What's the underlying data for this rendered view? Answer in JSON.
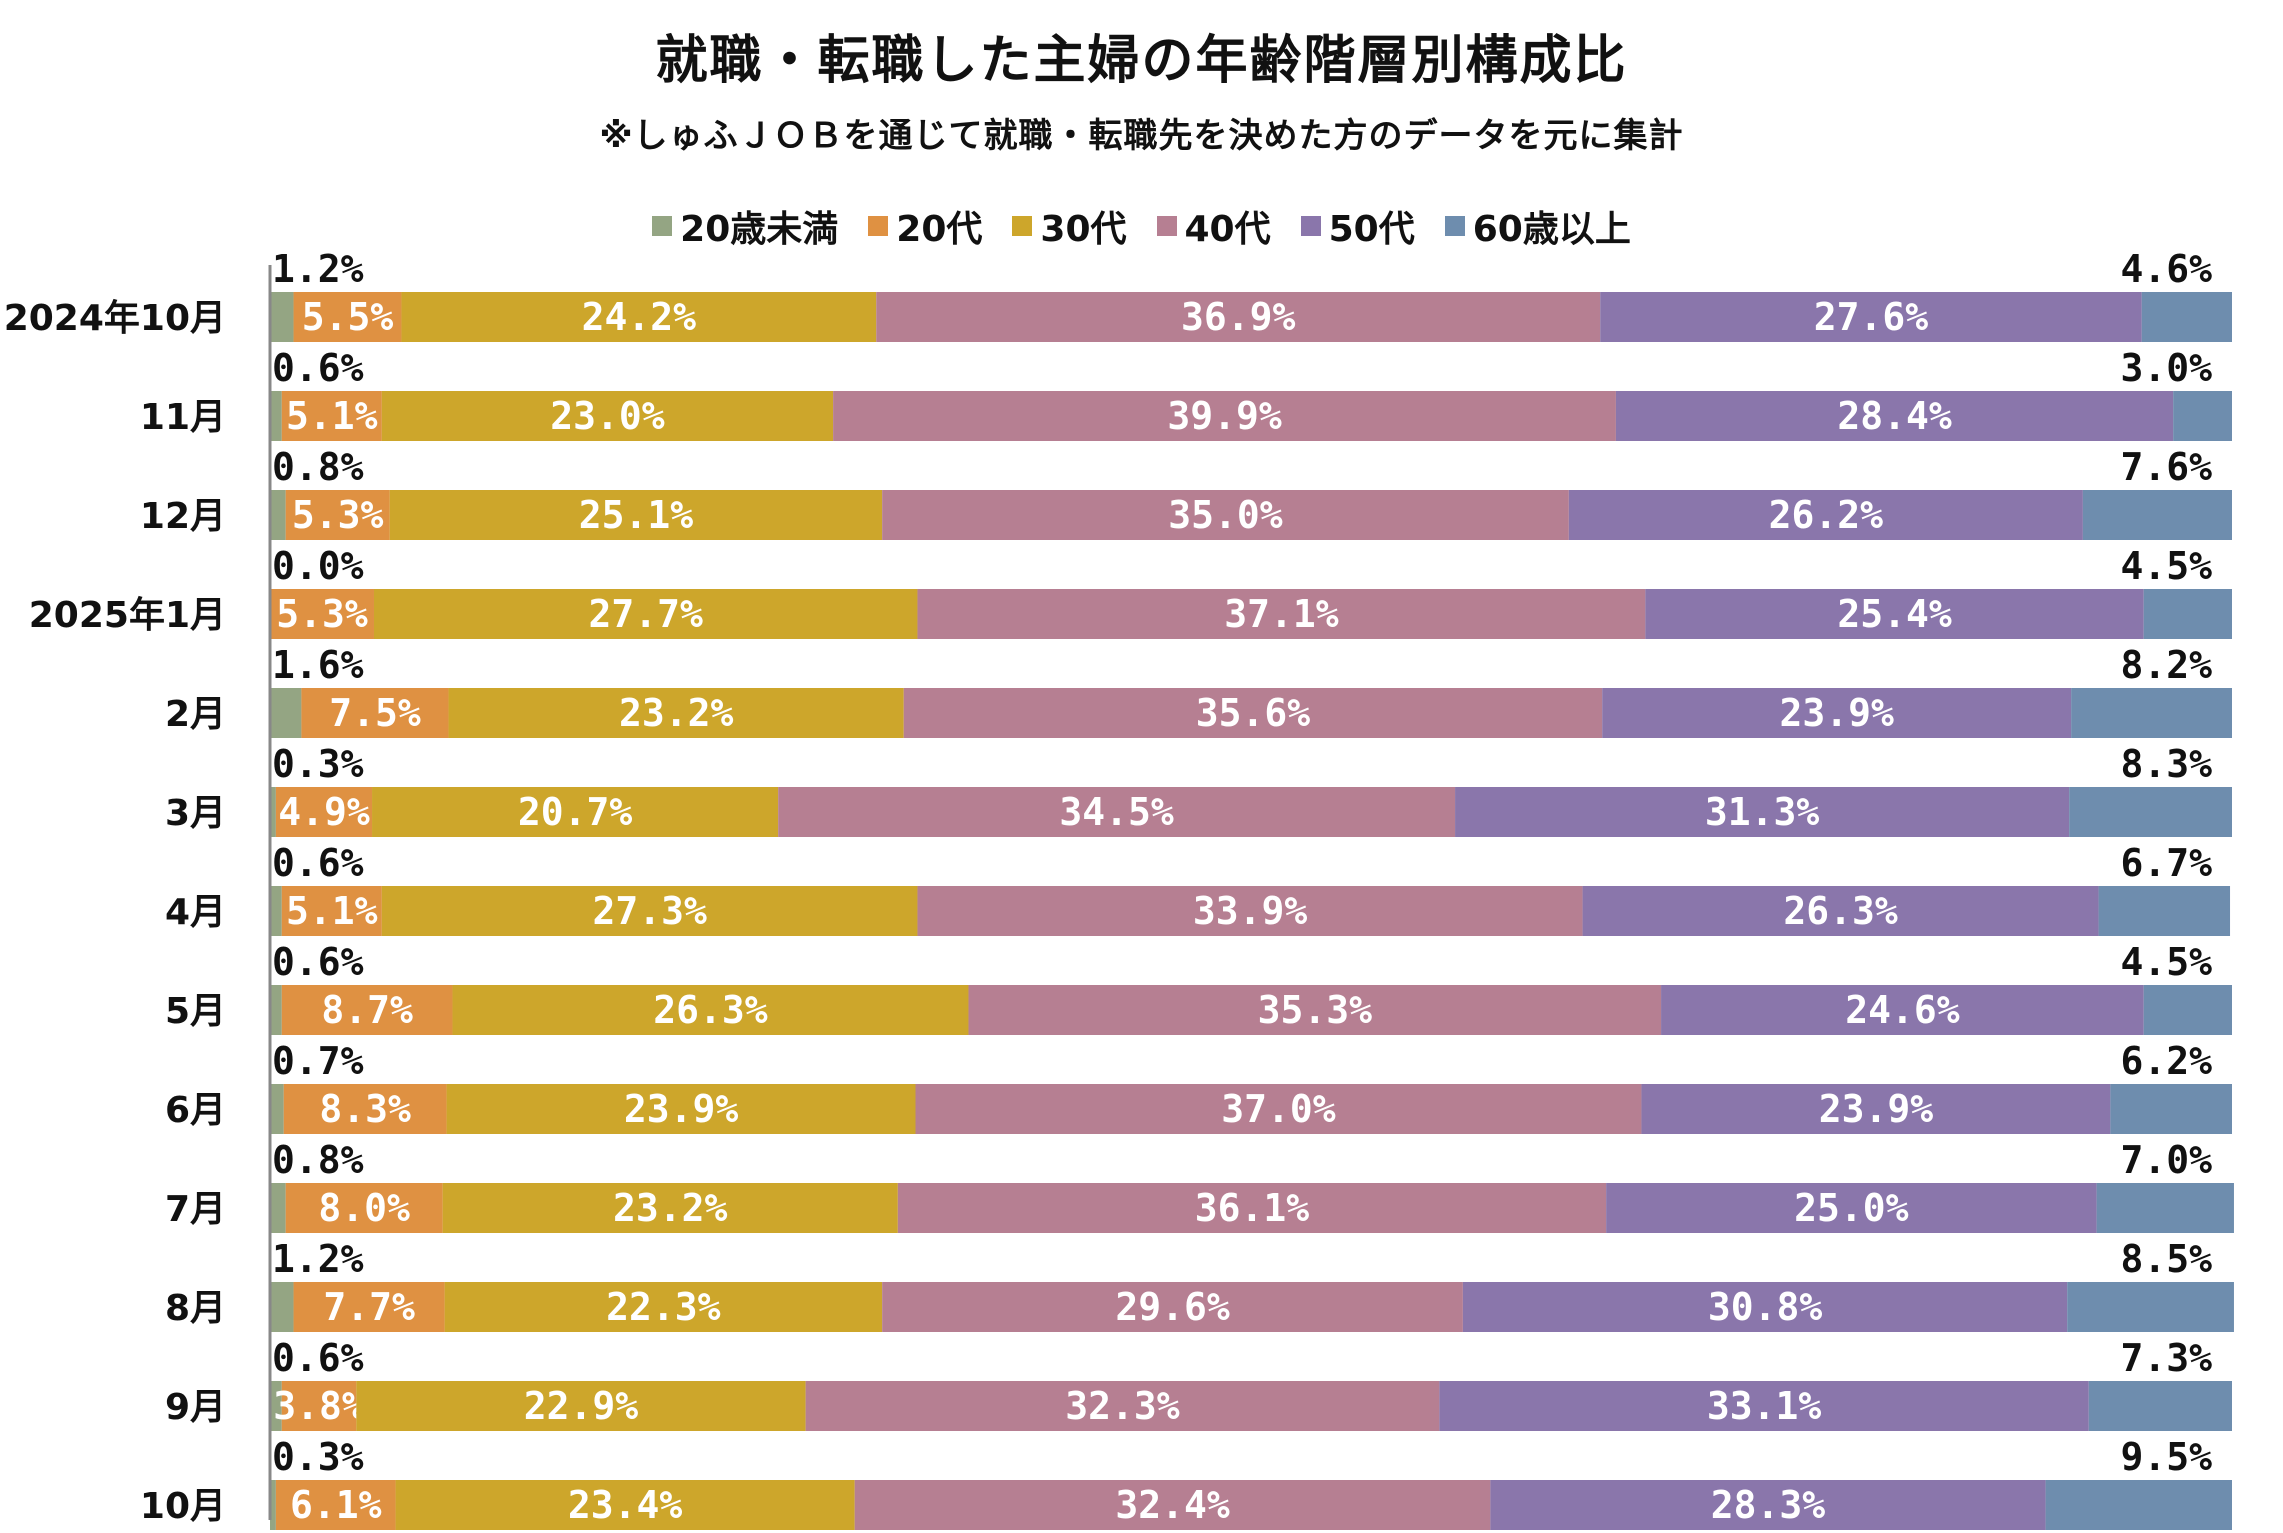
{
  "chart_data": {
    "type": "bar",
    "orientation": "horizontal",
    "stacked": true,
    "title": "就職・転職した主婦の年齢階層別構成比",
    "subtitle": "※しゅふＪＯＢを通じて就職・転職先を決めた方のデータを元に集計",
    "xlabel": "",
    "ylabel": "",
    "xlim": [
      0,
      100
    ],
    "legend_position": "top",
    "categories": [
      "2024年10月",
      "11月",
      "12月",
      "2025年1月",
      "2月",
      "3月",
      "4月",
      "5月",
      "6月",
      "7月",
      "8月",
      "9月",
      "10月"
    ],
    "series": [
      {
        "name": "20歳未満",
        "color": "#94a583",
        "values": [
          1.2,
          0.6,
          0.8,
          0.0,
          1.6,
          0.3,
          0.6,
          0.6,
          0.7,
          0.8,
          1.2,
          0.6,
          0.3
        ],
        "labels": [
          "1.2%",
          "0.6%",
          "0.8%",
          "0.0%",
          "1.6%",
          "0.3%",
          "0.6%",
          "0.6%",
          "0.7%",
          "0.8%",
          "1.2%",
          "0.6%",
          "0.3%"
        ]
      },
      {
        "name": "20代",
        "color": "#df9142",
        "values": [
          5.5,
          5.1,
          5.3,
          5.3,
          7.5,
          4.9,
          5.1,
          8.7,
          8.3,
          8.0,
          7.7,
          3.8,
          6.1
        ],
        "labels": [
          "5.5%",
          "5.1%",
          "5.3%",
          "5.3%",
          "7.5%",
          "4.9%",
          "5.1%",
          "8.7%",
          "8.3%",
          "8.0%",
          "7.7%",
          "3.8%",
          "6.1%"
        ]
      },
      {
        "name": "30代",
        "color": "#cda62b",
        "values": [
          24.2,
          23.0,
          25.1,
          27.7,
          23.2,
          20.7,
          27.3,
          26.3,
          23.9,
          23.2,
          22.3,
          22.9,
          23.4
        ],
        "labels": [
          "24.2%",
          "23.0%",
          "25.1%",
          "27.7%",
          "23.2%",
          "20.7%",
          "27.3%",
          "26.3%",
          "23.9%",
          "23.2%",
          "22.3%",
          "22.9%",
          "23.4%"
        ]
      },
      {
        "name": "40代",
        "color": "#b67f92",
        "values": [
          36.9,
          39.9,
          35.0,
          37.1,
          35.6,
          34.5,
          33.9,
          35.3,
          37.0,
          36.1,
          29.6,
          32.3,
          32.4
        ],
        "labels": [
          "36.9%",
          "39.9%",
          "35.0%",
          "37.1%",
          "35.6%",
          "34.5%",
          "33.9%",
          "35.3%",
          "37.0%",
          "36.1%",
          "29.6%",
          "32.3%",
          "32.4%"
        ]
      },
      {
        "name": "50代",
        "color": "#8a76ab",
        "values": [
          27.6,
          28.4,
          26.2,
          25.4,
          23.9,
          31.3,
          26.3,
          24.6,
          23.9,
          25.0,
          30.8,
          33.1,
          28.3
        ],
        "labels": [
          "27.6%",
          "28.4%",
          "26.2%",
          "25.4%",
          "23.9%",
          "31.3%",
          "26.3%",
          "24.6%",
          "23.9%",
          "25.0%",
          "30.8%",
          "33.1%",
          "28.3%"
        ]
      },
      {
        "name": "60歳以上",
        "color": "#6e8dae",
        "values": [
          4.6,
          3.0,
          7.6,
          4.5,
          8.2,
          8.3,
          6.7,
          4.5,
          6.2,
          7.0,
          8.5,
          7.3,
          9.5
        ],
        "labels": [
          "4.6%",
          "3.0%",
          "7.6%",
          "4.5%",
          "8.2%",
          "8.3%",
          "6.7%",
          "4.5%",
          "6.2%",
          "7.0%",
          "8.5%",
          "7.3%",
          "9.5%"
        ]
      }
    ]
  }
}
